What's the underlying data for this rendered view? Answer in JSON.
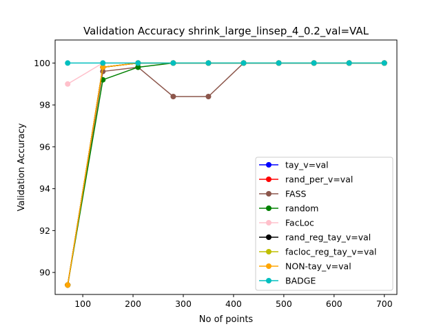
{
  "chart_data": {
    "type": "line",
    "title": "Validation Accuracy shrink_large_linsep_4_0.2_val=VAL",
    "xlabel": "No of points",
    "ylabel": "Validation Accuracy",
    "xlim": [
      45,
      725
    ],
    "ylim": [
      88.95,
      101.1
    ],
    "xticks": [
      100,
      200,
      300,
      400,
      500,
      600,
      700
    ],
    "yticks": [
      90,
      92,
      94,
      96,
      98,
      100
    ],
    "legend_position": "lower right",
    "x": [
      70,
      140,
      210,
      280,
      350,
      420,
      490,
      560,
      630,
      700
    ],
    "series": [
      {
        "name": "tay_v=val",
        "color": "#0000ff",
        "values": [
          89.4,
          99.8,
          100,
          100,
          100,
          100,
          100,
          100,
          100,
          100
        ]
      },
      {
        "name": "rand_per_v=val",
        "color": "#ff0000",
        "values": [
          89.4,
          99.8,
          100,
          100,
          100,
          100,
          100,
          100,
          100,
          100
        ]
      },
      {
        "name": "FASS",
        "color": "#8c564b",
        "values": [
          89.4,
          99.6,
          99.8,
          98.4,
          98.4,
          100,
          100,
          100,
          100,
          100
        ]
      },
      {
        "name": "random",
        "color": "#008000",
        "values": [
          89.4,
          99.2,
          99.8,
          100,
          100,
          100,
          100,
          100,
          100,
          100
        ]
      },
      {
        "name": "FacLoc",
        "color": "#ffc0cb",
        "values": [
          99.0,
          100,
          100,
          100,
          100,
          100,
          100,
          100,
          100,
          100
        ]
      },
      {
        "name": "rand_reg_tay_v=val",
        "color": "#000000",
        "values": [
          89.4,
          99.8,
          100,
          100,
          100,
          100,
          100,
          100,
          100,
          100
        ]
      },
      {
        "name": "facloc_reg_tay_v=val",
        "color": "#bfbf00",
        "values": [
          89.4,
          99.8,
          100,
          100,
          100,
          100,
          100,
          100,
          100,
          100
        ]
      },
      {
        "name": "NON-tay_v=val",
        "color": "#ffa500",
        "values": [
          89.4,
          99.8,
          100,
          100,
          100,
          100,
          100,
          100,
          100,
          100
        ]
      },
      {
        "name": "BADGE",
        "color": "#00bfbf",
        "values": [
          100,
          100,
          100,
          100,
          100,
          100,
          100,
          100,
          100,
          100
        ]
      }
    ]
  }
}
